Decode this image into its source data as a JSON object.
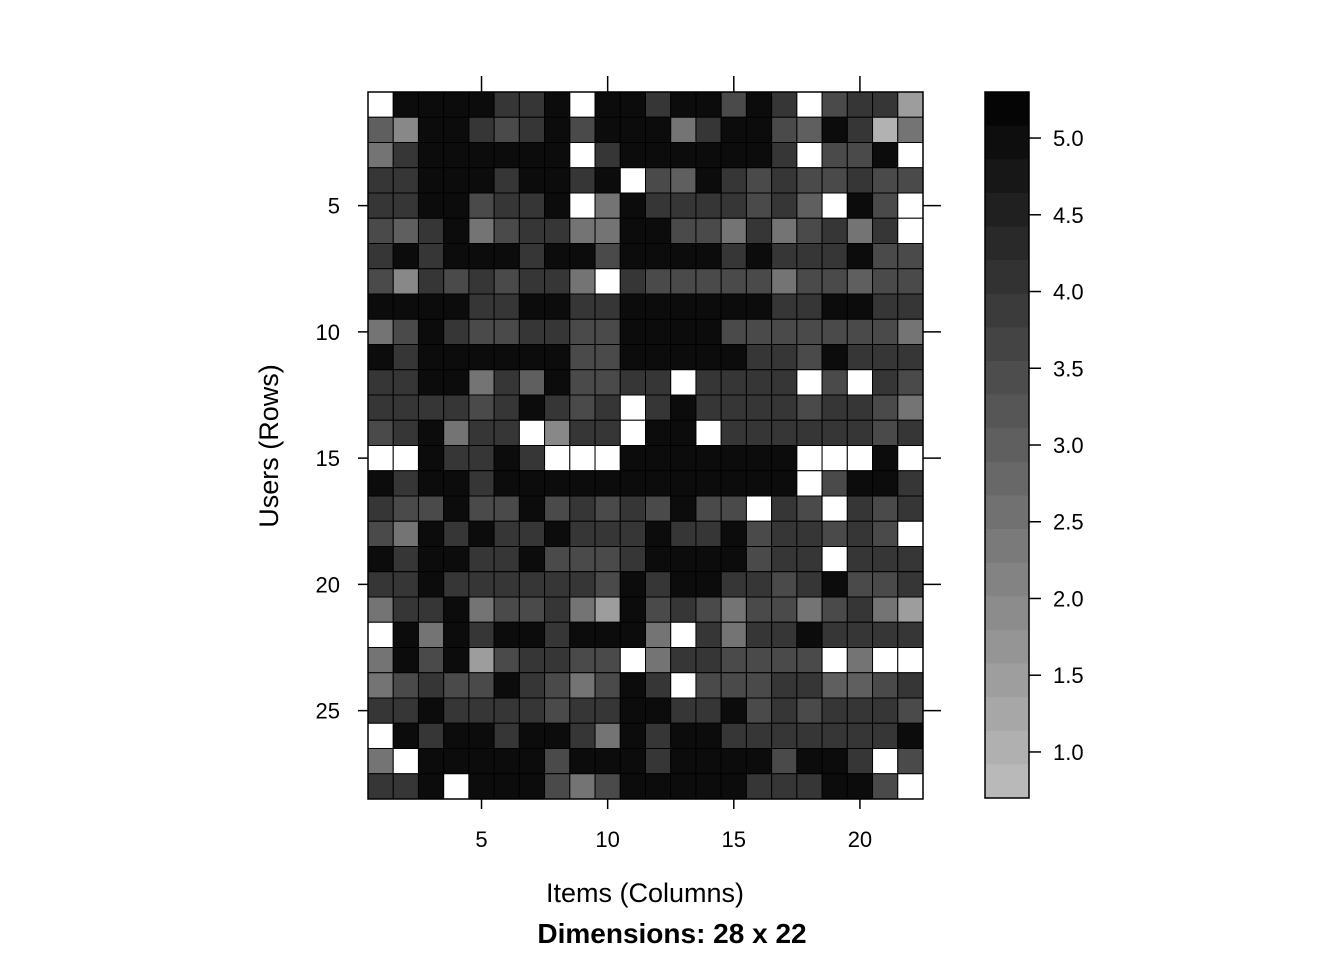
{
  "chart_data": {
    "type": "heatmap",
    "xlabel": "Items (Columns)",
    "ylabel": "Users (Rows)",
    "subtitle": "Dimensions: 28 x 22",
    "n_rows": 28,
    "n_cols": 22,
    "x_ticks": [
      5,
      10,
      15,
      20
    ],
    "y_ticks": [
      5,
      10,
      15,
      20,
      25
    ],
    "y_axis_reversed": true,
    "color_scale": {
      "min": 0.7,
      "max": 5.3,
      "low_color": "#bebebe",
      "high_color": "#000000",
      "ticks": [
        1.0,
        1.5,
        2.0,
        2.5,
        3.0,
        3.5,
        4.0,
        4.5,
        5.0
      ],
      "tick_labels": [
        "1.0",
        "1.5",
        "2.0",
        "2.5",
        "3.0",
        "3.5",
        "4.0",
        "4.5",
        "5.0"
      ]
    },
    "missing_color": "#ffffff",
    "values": [
      [
        null,
        5,
        5,
        5,
        5,
        4,
        4,
        5,
        null,
        5,
        5,
        4,
        5,
        5,
        3.5,
        5,
        4,
        null,
        3.5,
        4,
        4,
        1.5
      ],
      [
        3,
        2,
        5,
        5,
        4,
        3.5,
        4,
        5,
        3.5,
        5,
        5,
        5,
        2.5,
        4,
        5,
        5,
        3.5,
        3,
        5,
        4,
        1,
        2.5
      ],
      [
        2.5,
        4,
        5,
        5,
        5,
        5,
        5,
        5,
        null,
        4,
        5,
        5,
        5,
        5,
        5,
        5,
        4,
        null,
        3.5,
        3.5,
        5,
        null
      ],
      [
        4,
        4,
        5,
        5,
        5,
        4,
        5,
        5,
        4,
        5,
        null,
        3.5,
        3,
        5,
        4,
        3.5,
        4,
        3.5,
        3.5,
        4,
        3.5,
        3.5
      ],
      [
        4,
        4,
        5,
        5,
        3.5,
        4,
        4,
        5,
        null,
        2.5,
        5,
        4,
        4,
        4,
        4,
        3.5,
        4,
        3,
        null,
        5,
        3.5,
        null
      ],
      [
        3.5,
        3,
        4,
        5,
        2.5,
        3.5,
        4,
        4,
        2.5,
        2.5,
        5,
        5,
        3.5,
        3.5,
        2.5,
        4,
        2.5,
        3.5,
        4,
        2.5,
        4,
        null
      ],
      [
        4,
        5,
        4,
        5,
        5,
        5,
        4,
        5,
        5,
        3.5,
        5,
        5,
        5,
        5,
        4,
        5,
        4,
        4,
        4,
        5,
        3.5,
        3.5
      ],
      [
        3.5,
        2,
        4,
        3.5,
        4,
        3.5,
        4,
        4,
        2.5,
        null,
        4,
        3.5,
        3.5,
        3.5,
        3.5,
        3.5,
        2.5,
        3.5,
        3.5,
        3,
        3.5,
        3.5
      ],
      [
        5,
        5,
        5,
        5,
        4,
        4,
        5,
        5,
        4,
        4,
        5,
        5,
        5,
        5,
        5,
        5,
        4,
        4,
        5,
        5,
        4,
        4
      ],
      [
        2.5,
        3.5,
        5,
        4,
        3.5,
        3.5,
        4,
        4,
        3.5,
        3.5,
        5,
        5,
        5,
        5,
        3.5,
        3.5,
        3.5,
        3.5,
        3.5,
        3.5,
        3.5,
        2.5
      ],
      [
        5,
        4,
        5,
        5,
        5,
        5,
        5,
        5,
        3.5,
        3.5,
        5,
        5,
        5,
        5,
        5,
        4,
        4,
        3.5,
        5,
        4,
        4,
        4
      ],
      [
        4,
        4,
        5,
        5,
        2.5,
        4,
        3,
        5,
        3.5,
        3.5,
        4,
        4,
        null,
        4,
        4,
        4,
        4,
        null,
        3.5,
        null,
        4,
        3.5
      ],
      [
        4,
        4,
        4,
        4,
        3.5,
        4,
        5,
        4,
        3.5,
        4,
        null,
        4,
        5,
        4,
        4,
        4,
        4,
        3.5,
        4,
        4,
        3.5,
        2.5
      ],
      [
        3.5,
        4,
        5,
        2.5,
        4,
        4,
        null,
        2,
        4,
        4,
        null,
        5,
        5,
        null,
        4,
        4,
        4,
        4,
        4,
        4,
        3.5,
        4
      ],
      [
        null,
        null,
        5,
        4,
        4,
        5,
        4,
        null,
        null,
        null,
        5,
        5,
        5,
        5,
        5,
        5,
        5,
        null,
        null,
        null,
        5,
        null
      ],
      [
        5,
        4,
        5,
        5,
        4,
        5,
        5,
        5,
        5,
        5,
        5,
        5,
        5,
        5,
        5,
        5,
        5,
        null,
        3.5,
        5,
        5,
        4
      ],
      [
        4,
        3.5,
        3.5,
        5,
        3.5,
        3.5,
        5,
        3.5,
        4,
        3.5,
        4,
        3.5,
        5,
        3.5,
        3.5,
        null,
        4,
        3.5,
        null,
        4,
        3.5,
        4
      ],
      [
        3.5,
        2.5,
        5,
        4,
        5,
        4,
        4,
        5,
        4,
        4,
        4,
        5,
        4,
        4,
        5,
        3.5,
        4,
        4,
        3.5,
        4,
        3.5,
        null
      ],
      [
        5,
        4,
        5,
        5,
        4,
        4,
        5,
        3.5,
        3.5,
        3.5,
        4,
        5,
        5,
        5,
        5,
        3.5,
        4,
        4,
        null,
        4,
        4,
        4
      ],
      [
        4,
        4,
        5,
        4,
        4,
        4,
        4,
        4,
        4,
        3.5,
        5,
        4,
        5,
        5,
        4,
        4,
        3.5,
        4,
        5,
        3.5,
        3.5,
        4
      ],
      [
        2.5,
        4,
        4,
        5,
        2.5,
        3.5,
        3.5,
        4,
        2.5,
        1.5,
        5,
        3.5,
        4,
        3.5,
        2.5,
        3.5,
        3.5,
        2.5,
        3.5,
        4,
        2.5,
        1.5
      ],
      [
        null,
        5,
        2.5,
        5,
        4,
        5,
        5,
        4,
        5,
        5,
        5,
        2.5,
        null,
        4,
        2.5,
        4,
        4,
        5,
        4,
        4,
        4,
        4
      ],
      [
        2.5,
        5,
        3.5,
        5,
        1.5,
        3.5,
        4,
        4,
        3.5,
        3.5,
        null,
        2.5,
        4,
        4,
        3.5,
        3.5,
        3.5,
        3.5,
        null,
        2.5,
        null,
        null
      ],
      [
        2.5,
        3.5,
        4,
        3.5,
        3.5,
        5,
        4,
        3.5,
        2.5,
        3.5,
        5,
        4,
        null,
        3.5,
        3.5,
        3.5,
        4,
        4,
        3,
        3,
        3.5,
        4
      ],
      [
        4,
        4,
        5,
        4,
        4,
        4,
        4,
        3.5,
        4,
        4,
        5,
        5,
        4,
        4,
        5,
        3.5,
        4,
        3.5,
        4,
        4,
        4,
        3.5
      ],
      [
        null,
        5,
        4,
        5,
        5,
        4,
        5,
        5,
        4,
        2.5,
        5,
        4,
        5,
        5,
        4,
        4,
        4,
        4,
        4,
        4,
        4,
        5
      ],
      [
        2.5,
        null,
        5,
        5,
        5,
        5,
        5,
        3.5,
        5,
        5,
        5,
        4,
        5,
        5,
        5,
        5,
        3.5,
        5,
        5,
        4,
        null,
        3.5
      ],
      [
        4,
        4,
        5,
        null,
        5,
        5,
        5,
        3.5,
        2.5,
        3.5,
        5,
        5,
        5,
        5,
        5,
        4,
        4,
        4,
        5,
        5,
        3.5,
        null
      ]
    ]
  }
}
